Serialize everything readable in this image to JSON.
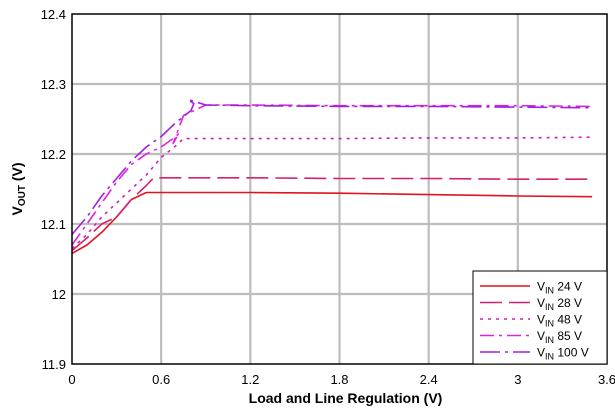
{
  "chart_data": {
    "type": "line",
    "xlabel": "Load and Line Regulation (V)",
    "ylabel": "V",
    "ylabel_sub": "OUT",
    "ylabel_unit": " (V)",
    "xlim": [
      0,
      3.6
    ],
    "ylim": [
      11.9,
      12.4
    ],
    "x_ticks": [
      0,
      0.6,
      1.2,
      1.8,
      2.4,
      3,
      3.6
    ],
    "x_tick_labels": [
      "0",
      "0.6",
      "1.2",
      "1.8",
      "2.4",
      "3",
      "3.6"
    ],
    "y_ticks": [
      11.9,
      12,
      12.1,
      12.2,
      12.3,
      12.4
    ],
    "y_tick_labels": [
      "11.9",
      "12",
      "12.1",
      "12.2",
      "12.3",
      "12.4"
    ],
    "grid": true,
    "legend_position": "bottom-right",
    "series": [
      {
        "name": "24 V",
        "legend_prefix": "V",
        "legend_sub": "IN",
        "color": "#e0141e",
        "dash": "solid",
        "x": [
          0,
          0.1,
          0.2,
          0.3,
          0.4,
          0.5,
          0.6,
          1.2,
          1.8,
          2.4,
          3.0,
          3.5
        ],
        "y": [
          12.058,
          12.07,
          12.088,
          12.11,
          12.135,
          12.145,
          12.145,
          12.145,
          12.144,
          12.142,
          12.14,
          12.139
        ]
      },
      {
        "name": "28 V",
        "legend_prefix": "V",
        "legend_sub": "IN",
        "color": "#d42070",
        "dash": "longdash",
        "x": [
          0,
          0.1,
          0.2,
          0.3,
          0.4,
          0.5,
          0.55,
          1.2,
          1.8,
          2.4,
          3.0,
          3.5
        ],
        "y": [
          12.062,
          12.08,
          12.1,
          12.11,
          12.135,
          12.155,
          12.166,
          12.166,
          12.165,
          12.165,
          12.164,
          12.164
        ]
      },
      {
        "name": "48 V",
        "legend_prefix": "V",
        "legend_sub": "IN",
        "color": "#cc22bb",
        "dash": "dot",
        "x": [
          0,
          0.1,
          0.2,
          0.3,
          0.4,
          0.5,
          0.6,
          0.7,
          0.75,
          1.2,
          1.8,
          2.4,
          3.0,
          3.5
        ],
        "y": [
          12.065,
          12.085,
          12.11,
          12.13,
          12.15,
          12.17,
          12.195,
          12.212,
          12.222,
          12.222,
          12.222,
          12.223,
          12.223,
          12.224
        ]
      },
      {
        "name": "85 V",
        "legend_prefix": "V",
        "legend_sub": "IN",
        "color": "#dd22dd",
        "dash": "dashdot",
        "x": [
          0,
          0.1,
          0.2,
          0.3,
          0.4,
          0.5,
          0.6,
          0.7,
          0.72,
          0.68,
          0.75,
          0.9,
          1.2,
          1.8,
          2.4,
          3.0,
          3.5
        ],
        "y": [
          12.07,
          12.1,
          12.13,
          12.16,
          12.185,
          12.2,
          12.21,
          12.225,
          12.23,
          12.215,
          12.255,
          12.27,
          12.27,
          12.269,
          12.269,
          12.269,
          12.268
        ]
      },
      {
        "name": "100 V",
        "legend_prefix": "V",
        "legend_sub": "IN",
        "color": "#a020e0",
        "dash": "longdashdot",
        "x": [
          0,
          0.1,
          0.2,
          0.3,
          0.4,
          0.5,
          0.6,
          0.7,
          0.8,
          0.82,
          0.78,
          0.9,
          1.2,
          1.8,
          2.4,
          3.0,
          3.5
        ],
        "y": [
          12.085,
          12.11,
          12.14,
          12.165,
          12.19,
          12.21,
          12.225,
          12.245,
          12.262,
          12.272,
          12.278,
          12.27,
          12.269,
          12.268,
          12.268,
          12.267,
          12.266
        ]
      }
    ]
  }
}
